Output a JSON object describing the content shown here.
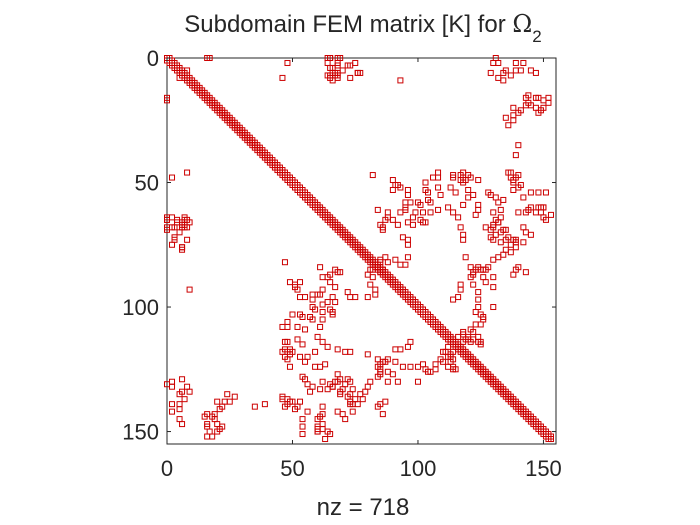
{
  "chart_data": {
    "type": "scatter",
    "title_prefix": "Subdomain FEM matrix [K] for ",
    "title_symbol": "Ω",
    "title_subscript": "2",
    "xlabel_prefix": "nz = ",
    "nz": 718,
    "x_ticks": [
      0,
      50,
      100,
      150
    ],
    "y_ticks": [
      0,
      50,
      100,
      150
    ],
    "xlim": [
      0,
      155
    ],
    "ylim": [
      0,
      155
    ],
    "y_reversed": true,
    "grid": false,
    "marker": "square",
    "marker_color": "#cc0000",
    "note": "Sparsity pattern of a symmetric 154x154 matrix: full main diagonal plus off-diagonal nonzero clusters",
    "series": [
      {
        "values": [
          [
            0,
            16
          ],
          [
            0,
            131
          ],
          [
            2,
            48
          ],
          [
            3,
            72
          ],
          [
            9,
            93
          ],
          [
            9,
            66
          ],
          [
            5,
            5
          ],
          [
            5,
            8
          ],
          [
            6,
            66
          ],
          [
            6,
            67
          ],
          [
            6,
            76
          ],
          [
            7,
            65
          ],
          [
            7,
            68
          ],
          [
            2,
            130
          ],
          [
            2,
            132
          ],
          [
            5,
            135
          ],
          [
            5,
            139
          ],
          [
            6,
            129
          ],
          [
            5,
            145
          ],
          [
            6,
            147
          ],
          [
            17,
            0
          ],
          [
            20,
            147
          ],
          [
            21,
            149
          ],
          [
            22,
            148
          ],
          [
            16,
            143
          ],
          [
            15,
            144
          ],
          [
            18,
            152
          ],
          [
            20,
            150
          ],
          [
            8,
            46
          ],
          [
            65,
            0
          ],
          [
            69,
            0
          ],
          [
            67,
            7
          ],
          [
            68,
            3
          ],
          [
            73,
            3
          ],
          [
            64,
            2
          ],
          [
            65,
            4
          ],
          [
            64,
            7
          ],
          [
            70,
            5
          ],
          [
            68,
            6
          ],
          [
            65,
            8
          ],
          [
            66,
            4
          ],
          [
            75,
            2
          ],
          [
            77,
            6
          ],
          [
            48,
            106
          ],
          [
            47,
            114
          ],
          [
            49,
            117
          ],
          [
            49,
            124
          ],
          [
            46,
            136
          ],
          [
            47,
            140
          ],
          [
            48,
            137
          ],
          [
            50,
            138
          ],
          [
            51,
            141
          ],
          [
            52,
            93
          ],
          [
            53,
            96
          ],
          [
            55,
            96
          ],
          [
            58,
            97
          ],
          [
            59,
            101
          ],
          [
            62,
            105
          ],
          [
            66,
            96
          ],
          [
            47,
            120
          ],
          [
            48,
            118
          ],
          [
            48,
            121
          ],
          [
            49,
            119
          ],
          [
            53,
            120
          ],
          [
            55,
            122
          ],
          [
            56,
            120
          ],
          [
            59,
            124
          ],
          [
            59,
            118
          ],
          [
            61,
            124
          ],
          [
            63,
            123
          ],
          [
            60,
            150
          ],
          [
            62,
            149
          ],
          [
            65,
            151
          ],
          [
            63,
            153
          ],
          [
            64,
            150
          ],
          [
            64,
            88
          ],
          [
            65,
            87
          ],
          [
            65,
            90
          ],
          [
            67,
            92
          ],
          [
            67,
            85
          ],
          [
            68,
            86
          ],
          [
            69,
            86
          ],
          [
            65,
            131
          ],
          [
            66,
            132
          ],
          [
            67,
            130
          ],
          [
            68,
            127
          ],
          [
            69,
            129
          ],
          [
            70,
            133
          ],
          [
            71,
            131
          ],
          [
            72,
            129
          ],
          [
            73,
            130
          ],
          [
            74,
            133
          ],
          [
            75,
            137
          ],
          [
            64,
            98
          ],
          [
            65,
            101
          ],
          [
            66,
            102
          ],
          [
            66,
            103
          ],
          [
            67,
            98
          ],
          [
            73,
            139
          ],
          [
            74,
            142
          ],
          [
            76,
            139
          ],
          [
            77,
            135
          ],
          [
            78,
            137
          ],
          [
            79,
            134
          ],
          [
            80,
            132
          ],
          [
            81,
            130
          ],
          [
            64,
            0
          ],
          [
            65,
            0
          ],
          [
            68,
            0
          ],
          [
            68,
            2
          ],
          [
            68,
            8
          ],
          [
            73,
            8
          ],
          [
            76,
            6
          ],
          [
            72,
            94
          ],
          [
            73,
            96
          ],
          [
            75,
            96
          ],
          [
            82,
            47
          ],
          [
            84,
            61
          ],
          [
            88,
            62
          ],
          [
            93,
            62
          ],
          [
            95,
            58
          ],
          [
            95,
            61
          ],
          [
            90,
            49
          ],
          [
            91,
            51
          ],
          [
            92,
            51
          ],
          [
            90,
            53
          ],
          [
            95,
            60
          ],
          [
            99,
            62
          ],
          [
            100,
            58
          ],
          [
            102,
            62
          ],
          [
            85,
            126
          ],
          [
            86,
            122
          ],
          [
            88,
            121
          ],
          [
            91,
            117
          ],
          [
            93,
            117
          ],
          [
            96,
            116
          ],
          [
            97,
            114
          ],
          [
            84,
            140
          ],
          [
            85,
            139
          ],
          [
            86,
            143
          ],
          [
            87,
            138
          ],
          [
            80,
            87
          ],
          [
            81,
            85
          ],
          [
            82,
            85
          ],
          [
            84,
            84
          ],
          [
            86,
            85
          ],
          [
            88,
            82
          ],
          [
            91,
            81
          ],
          [
            93,
            83
          ],
          [
            95,
            83
          ],
          [
            96,
            80
          ],
          [
            108,
            46
          ],
          [
            108,
            48
          ],
          [
            108,
            52
          ],
          [
            109,
            55
          ],
          [
            108,
            61
          ],
          [
            112,
            60
          ],
          [
            114,
            62
          ],
          [
            103,
            50
          ],
          [
            103,
            53
          ],
          [
            104,
            54
          ],
          [
            104,
            57
          ],
          [
            105,
            58
          ],
          [
            100,
            130
          ],
          [
            104,
            126
          ],
          [
            107,
            125
          ],
          [
            107,
            123
          ],
          [
            114,
            48
          ],
          [
            113,
            52
          ],
          [
            115,
            54
          ],
          [
            118,
            46
          ],
          [
            117,
            47
          ],
          [
            118,
            50
          ],
          [
            116,
            64
          ],
          [
            117,
            68
          ],
          [
            118,
            71
          ],
          [
            118,
            73
          ],
          [
            121,
            84
          ],
          [
            124,
            84
          ],
          [
            125,
            85
          ],
          [
            122,
            91
          ],
          [
            124,
            94
          ],
          [
            124,
            97
          ],
          [
            118,
            110
          ],
          [
            119,
            113
          ],
          [
            120,
            113
          ],
          [
            121,
            114
          ],
          [
            122,
            113
          ],
          [
            125,
            114
          ],
          [
            124,
            112
          ],
          [
            125,
            115
          ],
          [
            119,
            80
          ],
          [
            122,
            87
          ],
          [
            123,
            85
          ],
          [
            127,
            85
          ],
          [
            128,
            84
          ],
          [
            126,
            88
          ],
          [
            127,
            90
          ],
          [
            130,
            88
          ],
          [
            130,
            92
          ],
          [
            124,
            100
          ],
          [
            123,
            102
          ],
          [
            125,
            103
          ],
          [
            126,
            105
          ],
          [
            130,
            62
          ],
          [
            132,
            58
          ],
          [
            134,
            57
          ],
          [
            133,
            61
          ],
          [
            133,
            64
          ],
          [
            130,
            68
          ],
          [
            132,
            66
          ],
          [
            134,
            69
          ],
          [
            135,
            69
          ],
          [
            128,
            54
          ],
          [
            129,
            55
          ],
          [
            131,
            56
          ],
          [
            135,
            73
          ],
          [
            136,
            72
          ],
          [
            138,
            73
          ],
          [
            139,
            74
          ],
          [
            137,
            46
          ],
          [
            138,
            49
          ],
          [
            138,
            53
          ],
          [
            139,
            48
          ],
          [
            140,
            52
          ],
          [
            140,
            62
          ],
          [
            143,
            62
          ],
          [
            144,
            61
          ],
          [
            145,
            60
          ],
          [
            147,
            62
          ],
          [
            148,
            60
          ],
          [
            149,
            60
          ],
          [
            150,
            60
          ],
          [
            142,
            56
          ],
          [
            145,
            54
          ],
          [
            148,
            54
          ],
          [
            151,
            54
          ],
          [
            142,
            68
          ],
          [
            143,
            70
          ],
          [
            145,
            71
          ],
          [
            135,
            24
          ],
          [
            136,
            27
          ],
          [
            138,
            25
          ],
          [
            140,
            22
          ],
          [
            141,
            21
          ],
          [
            143,
            19
          ],
          [
            144,
            18
          ],
          [
            145,
            19
          ],
          [
            147,
            16
          ],
          [
            148,
            16
          ],
          [
            150,
            17
          ],
          [
            152,
            16
          ],
          [
            134,
            6
          ],
          [
            132,
            8
          ],
          [
            134,
            9
          ],
          [
            137,
            7
          ],
          [
            139,
            2
          ],
          [
            141,
            5
          ],
          [
            142,
            2
          ],
          [
            139,
            39
          ],
          [
            140,
            35
          ],
          [
            138,
            20
          ],
          [
            138,
            23
          ],
          [
            109,
            121
          ],
          [
            110,
            122
          ],
          [
            111,
            118
          ],
          [
            112,
            116
          ],
          [
            112,
            120
          ],
          [
            114,
            118
          ],
          [
            114,
            124
          ]
        ]
      },
      {
        "diagonal_length": 154
      }
    ]
  }
}
